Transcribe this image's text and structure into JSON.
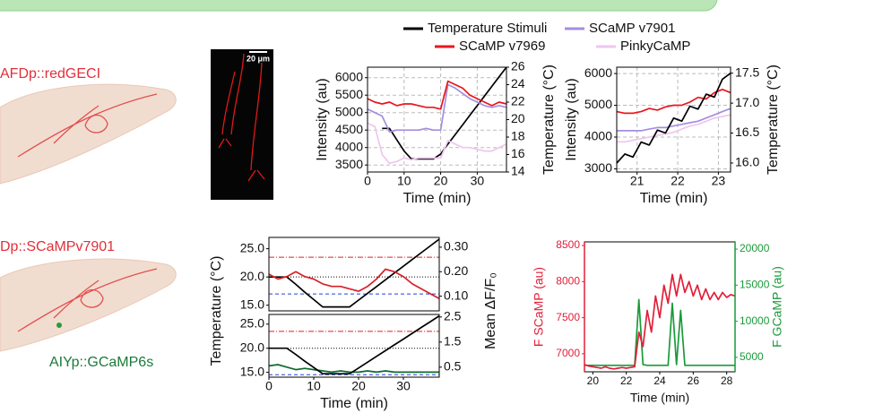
{
  "panel_labels": {
    "afd": "AFDp::redGECI",
    "dp": "Dp::SCaMPv7901",
    "aiy": "AIYp::GCaMP6s",
    "scale_bar": "20 μm"
  },
  "chart_data": [
    {
      "type": "line",
      "xlabel": "Time (min)",
      "ylabel": "Intensity (au)",
      "y2label": "Temperature (°C)",
      "grid": true,
      "xlim": [
        0,
        38
      ],
      "xticks": [
        0,
        10,
        20,
        30
      ],
      "ylim": [
        3300,
        6300
      ],
      "yticks": [
        3500,
        4000,
        4500,
        5000,
        5500,
        6000
      ],
      "y2lim": [
        14,
        26
      ],
      "y2ticks": [
        14,
        16,
        18,
        20,
        22,
        24,
        26
      ],
      "x": [
        0,
        2,
        4,
        6,
        8,
        10,
        12,
        14,
        16,
        18,
        20,
        22,
        24,
        26,
        28,
        30,
        32,
        34,
        36,
        38
      ],
      "series": [
        {
          "name": "Temperature Stimuli",
          "color": "#000000",
          "axis": "y2",
          "values": [
            null,
            null,
            19,
            19,
            17.7,
            16.4,
            15.5,
            15.5,
            15.5,
            15.5,
            16.05,
            17.2,
            18.3,
            19.4,
            20.5,
            21.6,
            22.7,
            23.8,
            24.9,
            26
          ]
        },
        {
          "name": "SCaMP v7901",
          "color": "#a58ee0",
          "values": [
            5100,
            5000,
            4900,
            4450,
            4500,
            4500,
            4500,
            4500,
            4550,
            4500,
            4500,
            5800,
            5700,
            5550,
            5400,
            5300,
            5200,
            5150,
            5200,
            5150
          ]
        },
        {
          "name": "SCaMP v7969",
          "color": "#e8161e",
          "values": [
            5400,
            5300,
            5250,
            5300,
            5200,
            5250,
            5250,
            5200,
            5150,
            5150,
            5100,
            5900,
            5800,
            5700,
            5500,
            5400,
            5300,
            5200,
            5300,
            5250
          ]
        },
        {
          "name": "PinkyCaMP",
          "color": "#efc6ee",
          "values": [
            4700,
            4600,
            3800,
            3550,
            3600,
            3700,
            3650,
            3700,
            3700,
            3700,
            3700,
            4200,
            4100,
            4000,
            4000,
            3950,
            3900,
            3900,
            4000,
            4100
          ]
        }
      ]
    },
    {
      "type": "line",
      "xlabel": "Time (min)",
      "ylabel": "Intensity (au)",
      "y2label": "Temperature (°C)",
      "grid": true,
      "xlim": [
        20.5,
        23.3
      ],
      "xticks": [
        21,
        22,
        23
      ],
      "ylim": [
        2900,
        6200
      ],
      "yticks": [
        3000,
        4000,
        5000,
        6000
      ],
      "y2lim": [
        15.85,
        17.6
      ],
      "y2ticks": [
        {
          "value": 16,
          "label": "16.0"
        },
        16.5,
        {
          "value": 17,
          "label": "17.0"
        },
        17.5
      ],
      "x": [
        20.5,
        20.7,
        20.9,
        21.1,
        21.3,
        21.5,
        21.7,
        21.9,
        22.1,
        22.3,
        22.5,
        22.7,
        22.9,
        23.1,
        23.3
      ],
      "series": [
        {
          "color": "#efc6ee",
          "values": [
            3850,
            3850,
            3900,
            3950,
            4000,
            4050,
            4100,
            4150,
            4250,
            4350,
            4400,
            4500,
            4600,
            4650,
            4700
          ]
        },
        {
          "color": "#a58ee0",
          "values": [
            4200,
            4200,
            4200,
            4200,
            4250,
            4300,
            4300,
            4350,
            4400,
            4450,
            4500,
            4600,
            4700,
            4800,
            4900
          ]
        },
        {
          "color": "#e8161e",
          "values": [
            4800,
            4750,
            4750,
            4800,
            4900,
            4850,
            4950,
            5000,
            5000,
            5100,
            5250,
            5200,
            5400,
            5500,
            5400
          ]
        },
        {
          "color": "#000000",
          "axis": "y2",
          "values": [
            16,
            16.15,
            16.1,
            16.35,
            16.3,
            16.55,
            16.5,
            16.75,
            16.7,
            16.95,
            16.9,
            17.15,
            17.1,
            17.4,
            17.5
          ]
        }
      ]
    },
    {
      "type": "line",
      "ylabel": "Temperature (°C)",
      "y2label": "Mean ΔF/F₀",
      "xlim": [
        0,
        38
      ],
      "ylim": [
        14,
        27
      ],
      "yticks": [
        {
          "value": 15,
          "label": "15.0"
        },
        {
          "value": 20,
          "label": "20.0"
        },
        {
          "value": 25,
          "label": "25.0"
        }
      ],
      "y2lim": [
        0.04,
        0.34
      ],
      "y2ticks": [
        {
          "value": 0.1,
          "label": "0.10"
        },
        {
          "value": 0.2,
          "label": "0.20"
        },
        {
          "value": 0.3,
          "label": "0.30"
        }
      ],
      "reference_lines": [
        {
          "value": 23.5,
          "color": "#e02020",
          "style": "dashdot"
        },
        {
          "value": 20,
          "color": "#000000",
          "style": "dotted"
        },
        {
          "value": 17,
          "color": "#2040e0",
          "style": "dashed"
        }
      ],
      "x": [
        0,
        2,
        4,
        6,
        8,
        10,
        12,
        14,
        16,
        18,
        20,
        22,
        24,
        26,
        28,
        30,
        32,
        34,
        36,
        38
      ],
      "series": [
        {
          "color": "#000000",
          "values": [
            20,
            20,
            20,
            18.7,
            17.3,
            16,
            14.7,
            14.7,
            14.7,
            14.7,
            15.9,
            17.1,
            18.3,
            19.5,
            20.7,
            21.9,
            23.1,
            24.3,
            25.5,
            26.7
          ]
        },
        {
          "color": "#d8202a",
          "axis": "y2",
          "values": [
            0.19,
            0.17,
            0.18,
            0.2,
            0.18,
            0.17,
            0.15,
            0.14,
            0.14,
            0.13,
            0.12,
            0.14,
            0.17,
            0.21,
            0.2,
            0.18,
            0.15,
            0.13,
            0.11,
            0.09
          ]
        }
      ]
    },
    {
      "type": "line",
      "xlabel": "Time (min)",
      "xlim": [
        0,
        38
      ],
      "xticks": [
        0,
        10,
        20,
        30
      ],
      "ylim": [
        14,
        27
      ],
      "yticks": [
        {
          "value": 15,
          "label": "15.0"
        },
        {
          "value": 20,
          "label": "20.0"
        },
        {
          "value": 25,
          "label": "25.0"
        }
      ],
      "y2lim": [
        0.1,
        2.6
      ],
      "y2ticks": [
        0.5,
        1.5,
        2.5
      ],
      "reference_lines": [
        {
          "value": 23.5,
          "color": "#e02020",
          "style": "dashdot"
        },
        {
          "value": 20,
          "color": "#000000",
          "style": "dotted"
        },
        {
          "value": 14.5,
          "color": "#2040e0",
          "style": "dashed"
        }
      ],
      "x": [
        0,
        2,
        4,
        6,
        8,
        10,
        12,
        14,
        16,
        18,
        20,
        22,
        24,
        26,
        28,
        30,
        32,
        34,
        36,
        38
      ],
      "series": [
        {
          "color": "#0e6b2c",
          "axis": "y2",
          "values": [
            0.55,
            0.6,
            0.5,
            0.4,
            0.45,
            0.4,
            0.35,
            0.3,
            0.35,
            0.3,
            0.3,
            0.35,
            0.3,
            0.35,
            0.3,
            0.3,
            0.3,
            0.3,
            0.3,
            0.3
          ]
        },
        {
          "color": "#000000",
          "values": [
            20,
            20,
            20,
            18.7,
            17.3,
            16,
            14.7,
            14.7,
            14.7,
            14.7,
            15.9,
            17.1,
            18.3,
            19.5,
            20.7,
            21.9,
            23.1,
            24.3,
            25.5,
            26.7
          ]
        }
      ]
    },
    {
      "type": "line",
      "xlabel": "Time (min)",
      "ylabel": "F SCaMP (au)",
      "y2label": "F GCaMP (au)",
      "y_color": "#e0203a",
      "y2_color": "#1a9a3a",
      "xlim": [
        19.5,
        28.5
      ],
      "xticks": [
        20,
        22,
        24,
        26,
        28
      ],
      "ylim": [
        6750,
        8550
      ],
      "yticks": [
        7000,
        7500,
        8000,
        8500
      ],
      "y2lim": [
        3000,
        21000
      ],
      "y2ticks": [
        5000,
        10000,
        15000,
        20000
      ],
      "x": [
        19.5,
        19.75,
        20,
        20.25,
        20.5,
        20.75,
        21,
        21.25,
        21.5,
        21.75,
        22,
        22.25,
        22.5,
        22.75,
        23,
        23.25,
        23.5,
        23.75,
        24,
        24.25,
        24.5,
        24.75,
        25,
        25.25,
        25.5,
        25.75,
        26,
        26.25,
        26.5,
        26.75,
        27,
        27.25,
        27.5,
        27.75,
        28,
        28.25,
        28.5
      ],
      "series": [
        {
          "color": "#1a9a3a",
          "axis": "y2",
          "values": [
            3900,
            3900,
            3900,
            3900,
            3900,
            3900,
            3900,
            3900,
            3900,
            3900,
            3900,
            3900,
            3900,
            13000,
            4000,
            3900,
            3900,
            3900,
            3900,
            3900,
            3900,
            12500,
            4000,
            11500,
            3900,
            3900,
            3900,
            3900,
            3900,
            3900,
            3900,
            3900,
            3900,
            3900,
            3900,
            3900,
            3900
          ]
        },
        {
          "color": "#e0203a",
          "values": [
            6850,
            6830,
            6820,
            6810,
            6800,
            6820,
            6800,
            6790,
            6800,
            6810,
            6800,
            6810,
            6820,
            7300,
            7100,
            7600,
            7300,
            7800,
            7500,
            7950,
            7700,
            8100,
            7800,
            8100,
            7850,
            8000,
            7800,
            7950,
            7750,
            7900,
            7750,
            7850,
            7750,
            7850,
            7780,
            7820,
            7800
          ]
        }
      ]
    }
  ]
}
